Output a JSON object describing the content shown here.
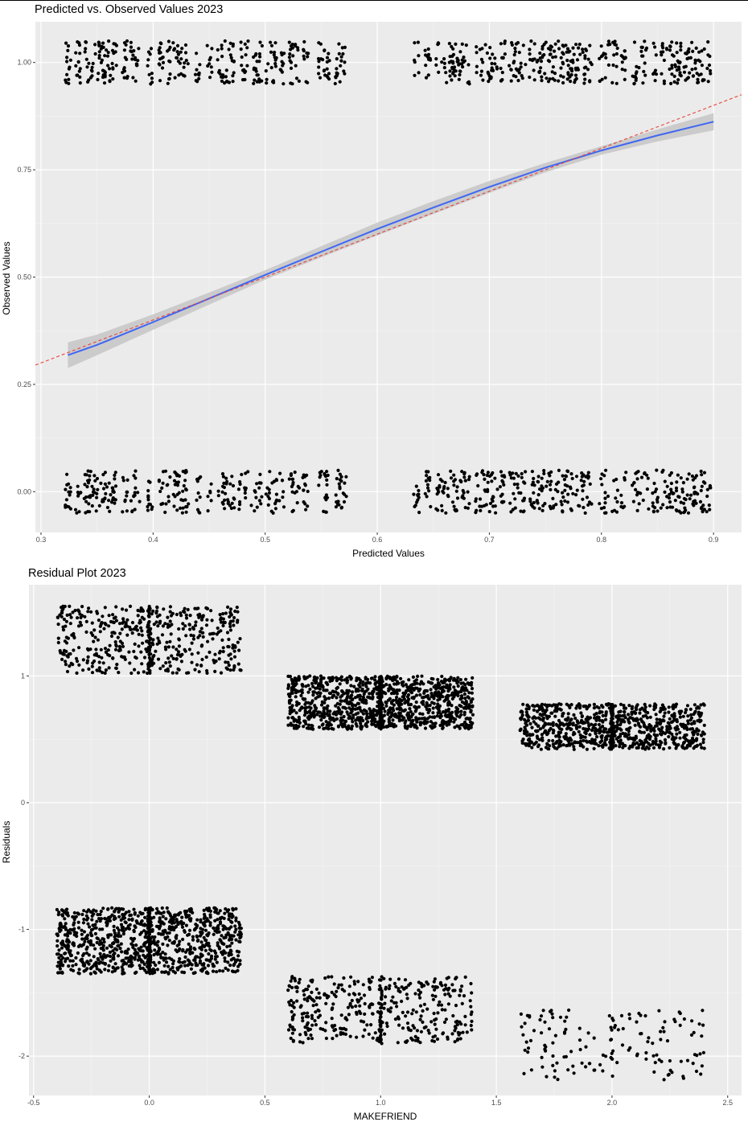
{
  "chart_data": [
    {
      "type": "scatter",
      "title": "Predicted vs. Observed Values 2023",
      "xlabel": "Predicted Values",
      "ylabel": "Observed Values",
      "xlim": [
        0.295,
        0.925
      ],
      "ylim": [
        -0.095,
        1.095
      ],
      "x_ticks": [
        0.3,
        0.4,
        0.5,
        0.6,
        0.7,
        0.8,
        0.9
      ],
      "x_tick_labels": [
        "0.3",
        "0.4",
        "0.5",
        "0.6",
        "0.7",
        "0.8",
        "0.9"
      ],
      "y_ticks": [
        0,
        0.25,
        0.5,
        0.75,
        1
      ],
      "y_tick_labels": [
        "0.00",
        "0.25",
        "0.50",
        "0.75",
        "1.00"
      ],
      "grid": true,
      "panel_color": "#ebebeb",
      "point_color": "#000000",
      "observed_levels": [
        0,
        1
      ],
      "jitter_height": 0.05,
      "predicted_value_columns": [
        0.324,
        0.333,
        0.341,
        0.345,
        0.35,
        0.354,
        0.358,
        0.362,
        0.365,
        0.375,
        0.382,
        0.386,
        0.397,
        0.407,
        0.413,
        0.42,
        0.425,
        0.43,
        0.44,
        0.45,
        0.46,
        0.465,
        0.47,
        0.478,
        0.483,
        0.49,
        0.495,
        0.503,
        0.508,
        0.515,
        0.523,
        0.528,
        0.536,
        0.55,
        0.555,
        0.565,
        0.57,
        0.635,
        0.645,
        0.655,
        0.66,
        0.665,
        0.67,
        0.675,
        0.68,
        0.69,
        0.695,
        0.7,
        0.705,
        0.712,
        0.72,
        0.725,
        0.73,
        0.738,
        0.745,
        0.75,
        0.755,
        0.76,
        0.765,
        0.77,
        0.775,
        0.78,
        0.785,
        0.79,
        0.8,
        0.805,
        0.812,
        0.82,
        0.83,
        0.835,
        0.84,
        0.848,
        0.855,
        0.86,
        0.865,
        0.87,
        0.875,
        0.88,
        0.885,
        0.89,
        0.895
      ],
      "series": [
        {
          "name": "",
          "kind": "reference_line",
          "color": "#e8433a",
          "dash": true,
          "x": [
            0.295,
            0.925
          ],
          "y": [
            0.295,
            0.925
          ]
        },
        {
          "name": "",
          "kind": "smooth_fit",
          "color": "#3f66f3",
          "band_color": "#c6c6c6",
          "x": [
            0.324,
            0.35,
            0.4,
            0.45,
            0.5,
            0.55,
            0.6,
            0.65,
            0.7,
            0.75,
            0.8,
            0.85,
            0.9
          ],
          "y": [
            0.318,
            0.342,
            0.395,
            0.45,
            0.505,
            0.559,
            0.612,
            0.662,
            0.71,
            0.755,
            0.795,
            0.83,
            0.862
          ],
          "ci_low": [
            0.288,
            0.318,
            0.377,
            0.436,
            0.494,
            0.546,
            0.597,
            0.647,
            0.696,
            0.744,
            0.785,
            0.816,
            0.842
          ],
          "ci_high": [
            0.348,
            0.366,
            0.413,
            0.464,
            0.516,
            0.572,
            0.627,
            0.677,
            0.724,
            0.766,
            0.805,
            0.844,
            0.882
          ]
        }
      ]
    },
    {
      "type": "scatter",
      "title": "Residual Plot 2023",
      "xlabel": "MAKEFRIEND",
      "ylabel": "Residuals",
      "xlim": [
        -0.52,
        2.56
      ],
      "ylim": [
        -2.31,
        1.72
      ],
      "x_ticks": [
        -0.5,
        0,
        0.5,
        1,
        1.5,
        2,
        2.5
      ],
      "x_tick_labels": [
        "-0.5",
        "0.0",
        "0.5",
        "1.0",
        "1.5",
        "2.0",
        "2.5"
      ],
      "y_ticks": [
        -2,
        -1,
        0,
        1
      ],
      "y_tick_labels": [
        "-2",
        "-1",
        "0",
        "1"
      ],
      "grid": true,
      "panel_color": "#ebebeb",
      "point_color": "#000000",
      "clusters": [
        {
          "x": 0,
          "x_spread": 0.4,
          "y_range": [
            1.02,
            1.55
          ],
          "count": 520
        },
        {
          "x": 0,
          "x_spread": 0.4,
          "y_range": [
            -1.35,
            -0.83
          ],
          "count": 1050
        },
        {
          "x": 1,
          "x_spread": 0.4,
          "y_range": [
            0.58,
            1.0
          ],
          "count": 1150
        },
        {
          "x": 1,
          "x_spread": 0.4,
          "y_range": [
            -1.9,
            -1.37
          ],
          "count": 430
        },
        {
          "x": 2,
          "x_spread": 0.4,
          "y_range": [
            0.42,
            0.78
          ],
          "count": 850
        },
        {
          "x": 2,
          "x_spread": 0.4,
          "y_range": [
            -2.2,
            -1.63
          ],
          "count": 150
        }
      ]
    }
  ]
}
